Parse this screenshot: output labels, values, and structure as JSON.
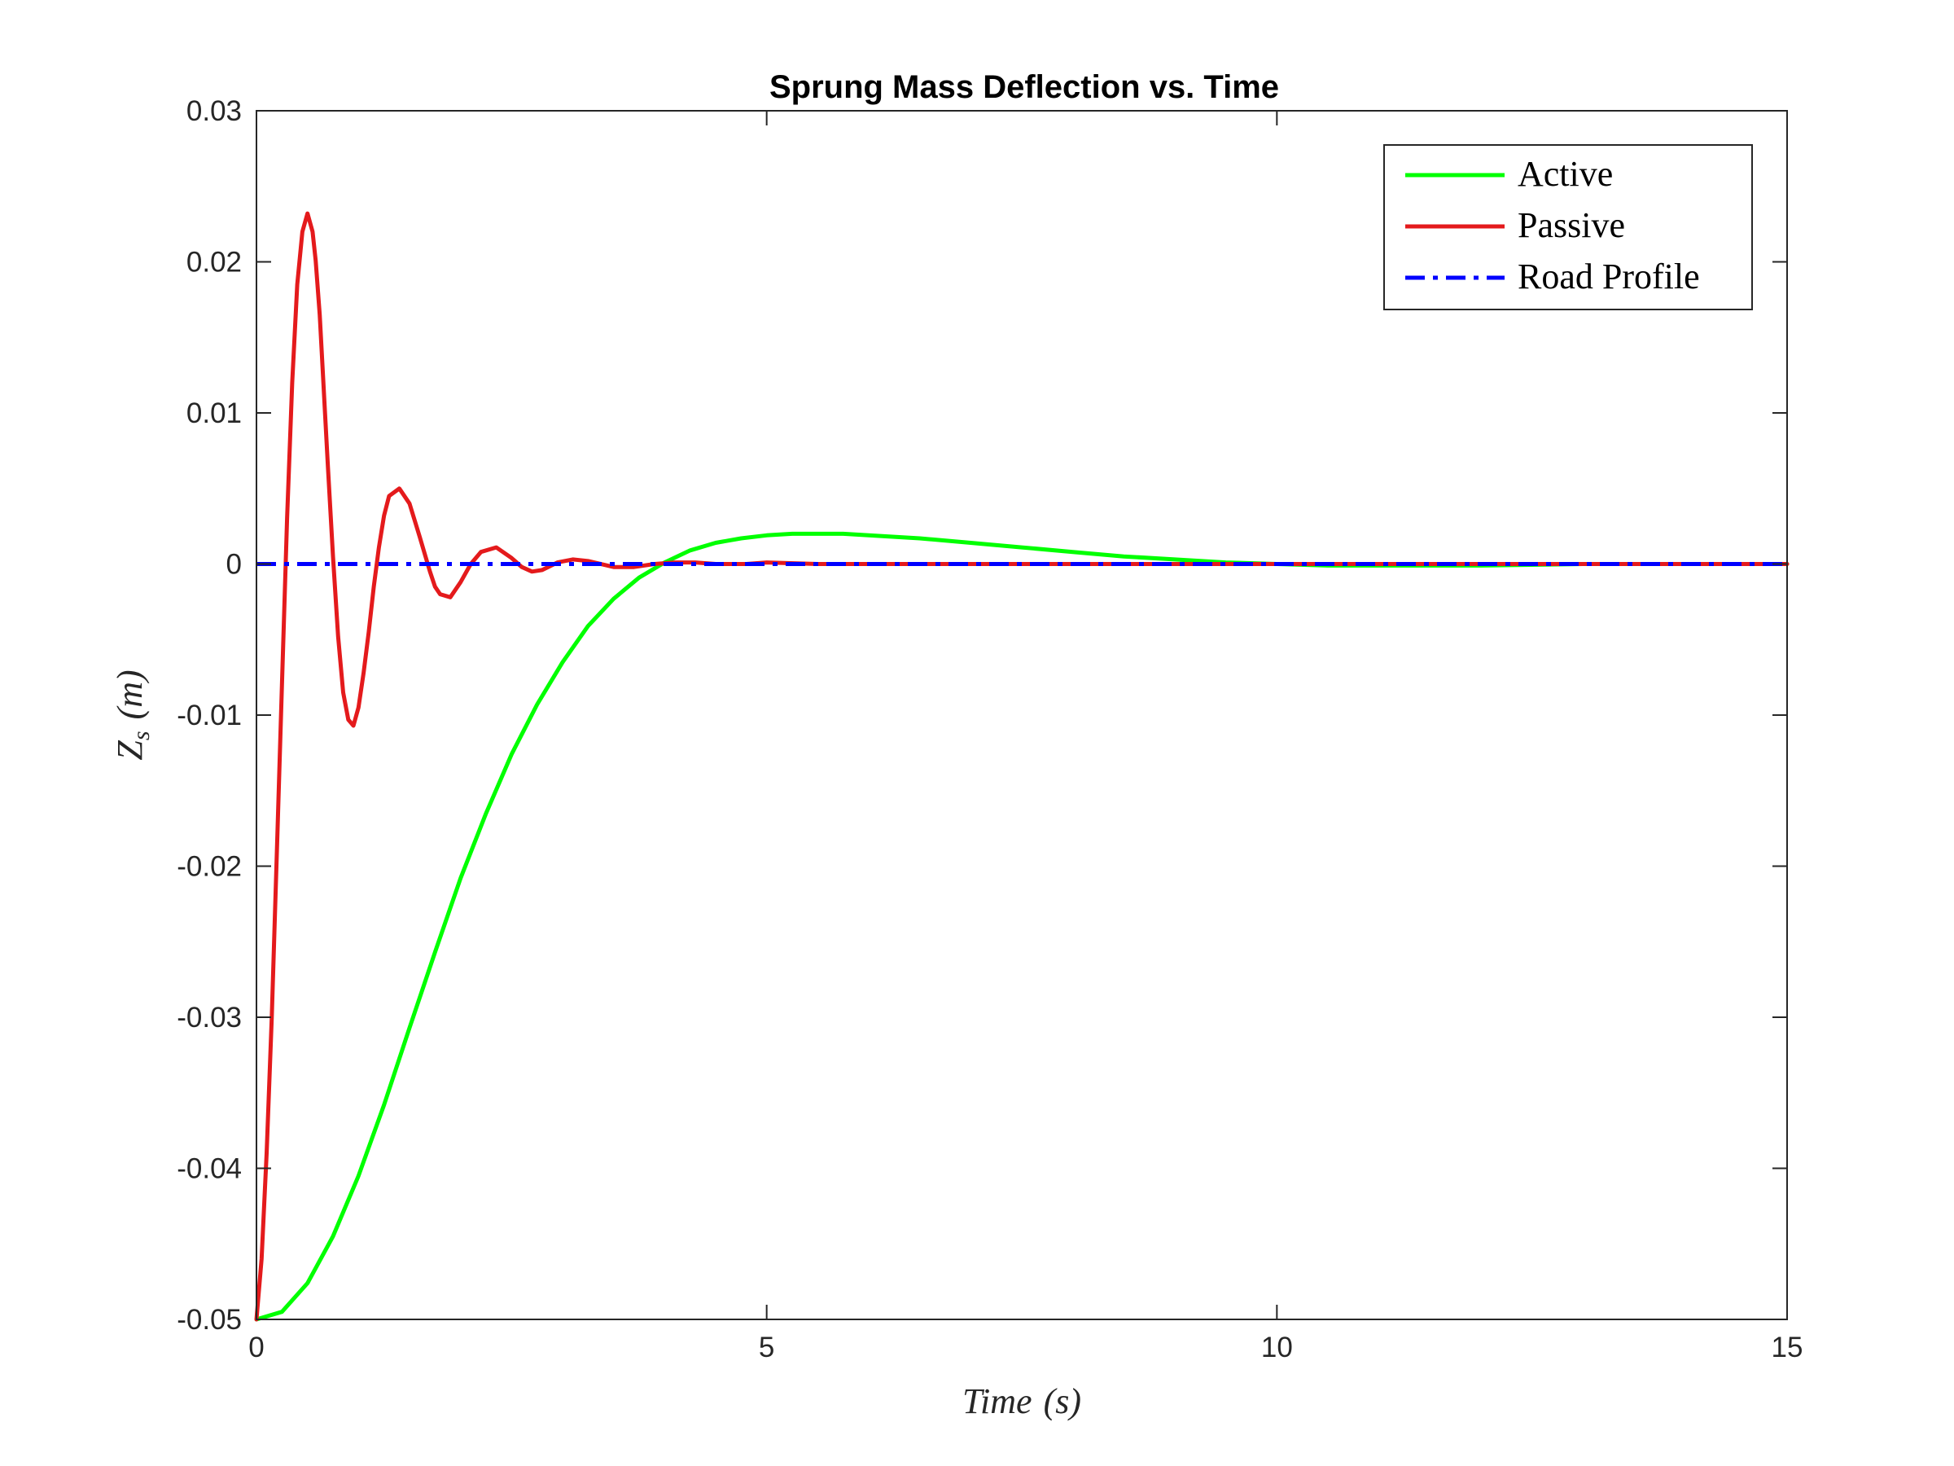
{
  "chart_data": {
    "type": "line",
    "title": "Sprung Mass Deflection vs. Time",
    "xlabel": "Time (s)",
    "ylabel": "Z_s (m)",
    "xlabel_parts": {
      "main": "Time",
      "unit": "(s)"
    },
    "ylabel_parts": {
      "main": "Z",
      "sub": "s",
      "unit": "(m)"
    },
    "xlim": [
      0,
      15
    ],
    "ylim": [
      -0.05,
      0.03
    ],
    "xticks": [
      0,
      5,
      10,
      15
    ],
    "xtick_labels": [
      "0",
      "5",
      "10",
      "15"
    ],
    "yticks": [
      -0.05,
      -0.04,
      -0.03,
      -0.02,
      -0.01,
      0,
      0.01,
      0.02,
      0.03
    ],
    "ytick_labels": [
      "-0.05",
      "-0.04",
      "-0.03",
      "-0.02",
      "-0.01",
      "0",
      "0.01",
      "0.02",
      "0.03"
    ],
    "grid": false,
    "legend_position": "top-right",
    "series": [
      {
        "name": "Active",
        "color": "#00ff00",
        "style": "solid",
        "x": [
          0,
          0.25,
          0.5,
          0.75,
          1,
          1.25,
          1.5,
          1.75,
          2,
          2.25,
          2.5,
          2.75,
          3,
          3.25,
          3.5,
          3.75,
          4,
          4.25,
          4.5,
          4.75,
          5,
          5.25,
          5.5,
          5.75,
          6,
          6.5,
          7,
          7.5,
          8,
          8.5,
          9,
          9.5,
          10,
          10.5,
          11,
          11.5,
          12,
          13,
          14,
          15
        ],
        "y": [
          -0.05,
          -0.0495,
          -0.0476,
          -0.0445,
          -0.0405,
          -0.0358,
          -0.0307,
          -0.0257,
          -0.0208,
          -0.0165,
          -0.0126,
          -0.0093,
          -0.0065,
          -0.0041,
          -0.0023,
          -0.0009,
          0.0001,
          0.0009,
          0.0014,
          0.0017,
          0.0019,
          0.002,
          0.002,
          0.002,
          0.0019,
          0.0017,
          0.0014,
          0.0011,
          0.0008,
          0.0005,
          0.0003,
          0.0001,
          0.0,
          -0.0001,
          -0.0001,
          -0.0001,
          -0.0001,
          0.0,
          0.0,
          0.0
        ]
      },
      {
        "name": "Passive",
        "color": "#e41a1c",
        "style": "solid",
        "x": [
          0,
          0.05,
          0.1,
          0.15,
          0.2,
          0.25,
          0.3,
          0.35,
          0.4,
          0.45,
          0.5,
          0.55,
          0.58,
          0.62,
          0.65,
          0.7,
          0.75,
          0.8,
          0.85,
          0.9,
          0.95,
          1.0,
          1.05,
          1.1,
          1.15,
          1.2,
          1.25,
          1.3,
          1.4,
          1.5,
          1.6,
          1.7,
          1.75,
          1.8,
          1.9,
          2.0,
          2.1,
          2.2,
          2.35,
          2.5,
          2.6,
          2.7,
          2.8,
          2.95,
          3.1,
          3.25,
          3.5,
          3.7,
          3.9,
          4.1,
          4.3,
          4.5,
          4.8,
          5.0,
          5.5,
          6,
          7,
          8,
          10,
          12,
          15
        ],
        "y": [
          -0.05,
          -0.046,
          -0.039,
          -0.03,
          -0.019,
          -0.008,
          0.003,
          0.012,
          0.0185,
          0.022,
          0.0232,
          0.022,
          0.0201,
          0.0165,
          0.0127,
          0.0065,
          0.0005,
          -0.0048,
          -0.0085,
          -0.0103,
          -0.0107,
          -0.0095,
          -0.0072,
          -0.0045,
          -0.0015,
          0.0011,
          0.0032,
          0.0045,
          0.005,
          0.004,
          0.0018,
          -0.0005,
          -0.0015,
          -0.002,
          -0.0022,
          -0.0012,
          0.0,
          0.0008,
          0.0011,
          0.0004,
          -0.0002,
          -0.0005,
          -0.0004,
          0.0001,
          0.0003,
          0.0002,
          -0.0002,
          -0.0002,
          0.0,
          0.0001,
          0.0001,
          0.0,
          0.0,
          0.0001,
          0.0,
          0.0,
          0.0,
          0.0,
          0.0,
          0.0,
          0.0
        ]
      },
      {
        "name": "Road Profile",
        "color": "#0000ff",
        "style": "dashdot",
        "x": [
          0,
          15
        ],
        "y": [
          0,
          0
        ]
      }
    ]
  }
}
